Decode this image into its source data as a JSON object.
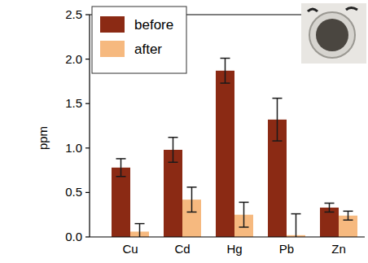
{
  "chart_data": {
    "type": "bar",
    "y_label": "ppm",
    "categories": [
      "Cu",
      "Cd",
      "Hg",
      "Pb",
      "Zn"
    ],
    "series": [
      {
        "name": "before",
        "color": "#8b2a14",
        "values": [
          0.78,
          0.98,
          1.87,
          1.32,
          0.33
        ],
        "errors": [
          0.1,
          0.14,
          0.14,
          0.24,
          0.05
        ]
      },
      {
        "name": "after",
        "color": "#f6b97f",
        "values": [
          0.06,
          0.42,
          0.25,
          0.02,
          0.24
        ],
        "errors": [
          0.09,
          0.14,
          0.14,
          0.24,
          0.05
        ]
      }
    ],
    "ylim": [
      0,
      2.5
    ],
    "yticks": [
      {
        "value": 0,
        "label": "0.0"
      },
      0.5,
      {
        "value": 1,
        "label": "1.0"
      },
      1.5,
      {
        "value": 2,
        "label": "2.0"
      },
      2.5
    ],
    "legend": "upper left",
    "grid": false
  }
}
